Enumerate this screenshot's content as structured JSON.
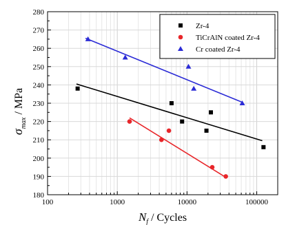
{
  "chart_data": {
    "type": "scatter",
    "x_scale": "log",
    "xlim": [
      100,
      200000
    ],
    "ylim": [
      180,
      280
    ],
    "xticks": [
      100,
      1000,
      10000,
      100000
    ],
    "xtick_labels": [
      "100",
      "1000",
      "10000",
      "100000"
    ],
    "yticks": [
      180,
      190,
      200,
      210,
      220,
      230,
      240,
      250,
      260,
      270,
      280
    ],
    "ytick_labels": [
      "180",
      "190",
      "200",
      "210",
      "220",
      "230",
      "240",
      "250",
      "260",
      "270",
      "280"
    ],
    "xlabel": "N_f / Cycles",
    "xlabel_main": "N",
    "xlabel_sub": "f",
    "xlabel_rest": " / Cycles",
    "ylabel": "σ_max / MPa",
    "ylabel_main": "σ",
    "ylabel_sub": "max",
    "ylabel_rest": " / MPa",
    "grid": true,
    "legend_position": "top-right",
    "series": [
      {
        "name": "Zr-4",
        "color": "#000000",
        "marker": "square",
        "points": [
          [
            270,
            238
          ],
          [
            6000,
            230
          ],
          [
            8500,
            220
          ],
          [
            19000,
            215
          ],
          [
            22000,
            225
          ],
          [
            125000,
            206
          ]
        ],
        "fit": [
          [
            260,
            240.5
          ],
          [
            120000,
            209.5
          ]
        ]
      },
      {
        "name": "TiCrAlN coated Zr-4",
        "color": "#e8262a",
        "marker": "circle",
        "points": [
          [
            1500,
            220
          ],
          [
            4300,
            210
          ],
          [
            5500,
            215
          ],
          [
            23000,
            195
          ],
          [
            36000,
            190
          ]
        ],
        "fit": [
          [
            1500,
            222
          ],
          [
            36000,
            189.5
          ]
        ]
      },
      {
        "name": "Cr coated Zr-4",
        "color": "#2b2bd6",
        "marker": "triangle",
        "points": [
          [
            380,
            265
          ],
          [
            1300,
            255
          ],
          [
            10500,
            250
          ],
          [
            12500,
            238
          ],
          [
            62000,
            230
          ]
        ],
        "fit": [
          [
            350,
            265.5
          ],
          [
            62000,
            230.5
          ]
        ]
      }
    ]
  }
}
